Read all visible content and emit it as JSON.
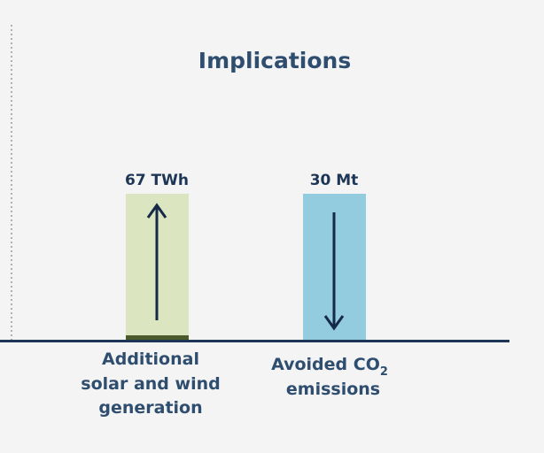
{
  "chart_data": {
    "type": "bar",
    "title": "Implications",
    "categories": [
      {
        "lines": [
          "Additional",
          "solar and wind",
          "generation"
        ]
      },
      {
        "lines": [
          "Avoided CO",
          "emissions"
        ],
        "subscript": "2"
      }
    ],
    "series": [
      {
        "values": [
          67,
          30
        ],
        "value_labels": [
          "67 TWh",
          "30 Mt"
        ],
        "units": [
          "TWh",
          "Mt"
        ],
        "direction": [
          "up",
          "down"
        ]
      }
    ],
    "colors": {
      "bar_1": "#dbe5c0",
      "bar_1_base": "#4a5a2a",
      "bar_2": "#93cbdf",
      "arrow": "#152a46",
      "axis": "#1e3656",
      "divider": "#9a9a9a",
      "title": "#2f4e6f",
      "value_label": "#1e3656",
      "category_label": "#2f4e6f",
      "background": "#f4f4f4"
    },
    "grid": false,
    "legend": "none"
  }
}
